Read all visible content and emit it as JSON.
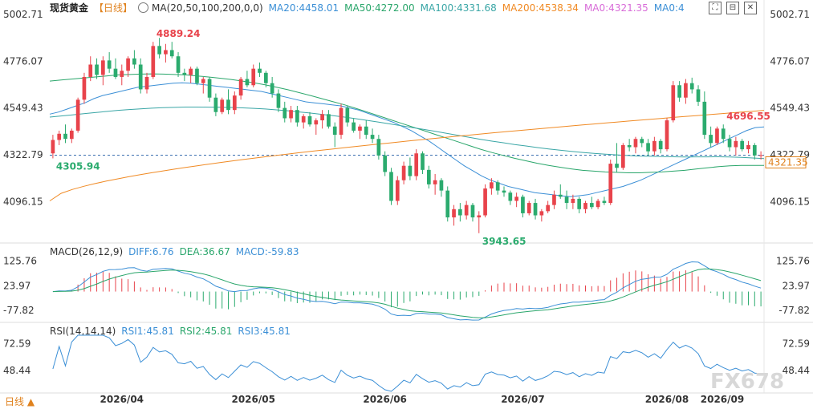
{
  "header": {
    "title": "现货黄金",
    "period": "【日线】",
    "ma_label": "MA(20,50,100,200,0,0)",
    "ma20": "MA20:4458.01",
    "ma50": "MA50:4272.00",
    "ma100": "MA100:4331.68",
    "ma200": "MA200:4538.34",
    "ma0a": "MA0:4321.35",
    "ma0b": "MA0:4"
  },
  "macd_header": {
    "label": "MACD(26,12,9)",
    "diff": "DIFF:6.76",
    "dea": "DEA:36.67",
    "macd": "MACD:-59.83"
  },
  "rsi_header": {
    "label": "RSI(14,14,14)",
    "rsi1": "RSI1:45.81",
    "rsi2": "RSI2:45.81",
    "rsi3": "RSI3:45.81"
  },
  "footer": {
    "period_selector": "日线 ▲"
  },
  "watermark": "FX678",
  "colors": {
    "up": "#e8434b",
    "down": "#2bab6e",
    "ma20": "#3b8fd6",
    "ma50": "#2aa66b",
    "ma100": "#3aa6a6",
    "ma200": "#f08a24",
    "diff": "#3b8fd6",
    "dea": "#2aa66b"
  },
  "chart_data": [
    {
      "type": "candlestick",
      "title": "现货黄金 日线",
      "y_axis_ticks": [
        "5002.71",
        "4776.07",
        "4549.43",
        "4322.79",
        "4096.15"
      ],
      "ylim": [
        3900,
        5002.71
      ],
      "x_tick_labels": [
        "2026/04",
        "2026/05",
        "2026/06",
        "2026/07",
        "2026/08",
        "2026/09"
      ],
      "current_price_label": "4321.35",
      "annotations": [
        {
          "text": "4889.24",
          "type": "high"
        },
        {
          "text": "4305.94",
          "type": "low"
        },
        {
          "text": "3943.65",
          "type": "low"
        },
        {
          "text": "4696.55",
          "type": "high"
        }
      ],
      "ohlc": [
        [
          4330,
          4420,
          4305.94,
          4395
        ],
        [
          4395,
          4440,
          4370,
          4425
        ],
        [
          4425,
          4470,
          4380,
          4400
        ],
        [
          4400,
          4450,
          4380,
          4440
        ],
        [
          4440,
          4600,
          4430,
          4590
        ],
        [
          4590,
          4720,
          4570,
          4700
        ],
        [
          4700,
          4800,
          4680,
          4760
        ],
        [
          4760,
          4790,
          4690,
          4710
        ],
        [
          4710,
          4800,
          4660,
          4780
        ],
        [
          4780,
          4820,
          4720,
          4740
        ],
        [
          4740,
          4790,
          4690,
          4700
        ],
        [
          4700,
          4760,
          4660,
          4730
        ],
        [
          4730,
          4800,
          4700,
          4790
        ],
        [
          4790,
          4830,
          4740,
          4760
        ],
        [
          4760,
          4790,
          4620,
          4640
        ],
        [
          4640,
          4720,
          4620,
          4700
        ],
        [
          4700,
          4870,
          4690,
          4850
        ],
        [
          4850,
          4889.24,
          4790,
          4810
        ],
        [
          4810,
          4860,
          4770,
          4830
        ],
        [
          4830,
          4870,
          4790,
          4800
        ],
        [
          4800,
          4820,
          4700,
          4720
        ],
        [
          4720,
          4740,
          4680,
          4710
        ],
        [
          4710,
          4750,
          4670,
          4740
        ],
        [
          4740,
          4750,
          4660,
          4670
        ],
        [
          4670,
          4700,
          4620,
          4690
        ],
        [
          4690,
          4700,
          4580,
          4600
        ],
        [
          4600,
          4620,
          4510,
          4530
        ],
        [
          4530,
          4600,
          4520,
          4590
        ],
        [
          4590,
          4640,
          4520,
          4540
        ],
        [
          4540,
          4630,
          4520,
          4610
        ],
        [
          4610,
          4700,
          4590,
          4690
        ],
        [
          4690,
          4730,
          4650,
          4660
        ],
        [
          4660,
          4760,
          4650,
          4740
        ],
        [
          4740,
          4770,
          4700,
          4720
        ],
        [
          4720,
          4730,
          4650,
          4670
        ],
        [
          4670,
          4700,
          4600,
          4620
        ],
        [
          4620,
          4640,
          4530,
          4550
        ],
        [
          4550,
          4580,
          4480,
          4500
        ],
        [
          4500,
          4560,
          4480,
          4540
        ],
        [
          4540,
          4560,
          4460,
          4480
        ],
        [
          4480,
          4520,
          4450,
          4510
        ],
        [
          4510,
          4530,
          4460,
          4470
        ],
        [
          4470,
          4500,
          4420,
          4490
        ],
        [
          4490,
          4540,
          4450,
          4520
        ],
        [
          4520,
          4540,
          4450,
          4460
        ],
        [
          4460,
          4480,
          4360,
          4420
        ],
        [
          4420,
          4570,
          4400,
          4550
        ],
        [
          4550,
          4560,
          4460,
          4480
        ],
        [
          4480,
          4500,
          4430,
          4440
        ],
        [
          4440,
          4470,
          4400,
          4460
        ],
        [
          4460,
          4490,
          4400,
          4420
        ],
        [
          4420,
          4450,
          4380,
          4400
        ],
        [
          4400,
          4420,
          4300,
          4320
        ],
        [
          4320,
          4340,
          4220,
          4240
        ],
        [
          4240,
          4260,
          4080,
          4100
        ],
        [
          4100,
          4220,
          4080,
          4200
        ],
        [
          4200,
          4290,
          4180,
          4270
        ],
        [
          4270,
          4310,
          4200,
          4220
        ],
        [
          4220,
          4350,
          4200,
          4330
        ],
        [
          4330,
          4340,
          4230,
          4250
        ],
        [
          4250,
          4270,
          4160,
          4180
        ],
        [
          4180,
          4230,
          4130,
          4200
        ],
        [
          4200,
          4210,
          4120,
          4150
        ],
        [
          4150,
          4170,
          4000,
          4020
        ],
        [
          4020,
          4080,
          3980,
          4060
        ],
        [
          4060,
          4090,
          4000,
          4030
        ],
        [
          4030,
          4100,
          4010,
          4080
        ],
        [
          4080,
          4090,
          4000,
          4020
        ],
        [
          4020,
          4050,
          3943.65,
          4030
        ],
        [
          4030,
          4180,
          4020,
          4160
        ],
        [
          4160,
          4210,
          4130,
          4190
        ],
        [
          4190,
          4200,
          4130,
          4150
        ],
        [
          4150,
          4170,
          4120,
          4140
        ],
        [
          4140,
          4150,
          4080,
          4100
        ],
        [
          4100,
          4140,
          4070,
          4120
        ],
        [
          4120,
          4130,
          4020,
          4040
        ],
        [
          4040,
          4100,
          4030,
          4090
        ],
        [
          4090,
          4110,
          4010,
          4030
        ],
        [
          4030,
          4060,
          4000,
          4050
        ],
        [
          4050,
          4100,
          4040,
          4080
        ],
        [
          4080,
          4150,
          4060,
          4130
        ],
        [
          4130,
          4180,
          4110,
          4120
        ],
        [
          4120,
          4150,
          4060,
          4090
        ],
        [
          4090,
          4130,
          4060,
          4110
        ],
        [
          4110,
          4120,
          4040,
          4060
        ],
        [
          4060,
          4100,
          4040,
          4090
        ],
        [
          4090,
          4120,
          4060,
          4070
        ],
        [
          4070,
          4110,
          4060,
          4100
        ],
        [
          4100,
          4120,
          4080,
          4090
        ],
        [
          4090,
          4300,
          4080,
          4280
        ],
        [
          4280,
          4380,
          4240,
          4260
        ],
        [
          4260,
          4380,
          4250,
          4370
        ],
        [
          4370,
          4400,
          4340,
          4360
        ],
        [
          4360,
          4410,
          4330,
          4400
        ],
        [
          4400,
          4410,
          4360,
          4380
        ],
        [
          4380,
          4400,
          4320,
          4340
        ],
        [
          4340,
          4410,
          4320,
          4390
        ],
        [
          4390,
          4400,
          4330,
          4350
        ],
        [
          4350,
          4500,
          4340,
          4490
        ],
        [
          4490,
          4680,
          4480,
          4660
        ],
        [
          4660,
          4680,
          4580,
          4600
        ],
        [
          4600,
          4690,
          4570,
          4670
        ],
        [
          4670,
          4696.55,
          4620,
          4640
        ],
        [
          4640,
          4660,
          4560,
          4580
        ],
        [
          4580,
          4630,
          4400,
          4420
        ],
        [
          4420,
          4460,
          4360,
          4380
        ],
        [
          4380,
          4460,
          4370,
          4450
        ],
        [
          4450,
          4470,
          4380,
          4400
        ],
        [
          4400,
          4420,
          4340,
          4360
        ],
        [
          4360,
          4410,
          4320,
          4390
        ],
        [
          4390,
          4400,
          4340,
          4350
        ],
        [
          4350,
          4390,
          4330,
          4370
        ],
        [
          4370,
          4380,
          4300,
          4320
        ],
        [
          4320,
          4340,
          4300,
          4321.35
        ]
      ],
      "ma20": [
        4520,
        4530,
        4545,
        4560,
        4575,
        4595,
        4610,
        4620,
        4630,
        4640,
        4650,
        4655,
        4660,
        4665,
        4670,
        4672,
        4670,
        4665,
        4660,
        4655,
        4650,
        4645,
        4640,
        4635,
        4630,
        4620,
        4610,
        4600,
        4590,
        4580,
        4575,
        4570,
        4565,
        4560,
        4550,
        4540,
        4525,
        4510,
        4495,
        4480,
        4460,
        4440,
        4415,
        4390,
        4360,
        4330,
        4300,
        4270,
        4245,
        4220,
        4200,
        4185,
        4170,
        4160,
        4150,
        4140,
        4135,
        4130,
        4125,
        4120,
        4125,
        4130,
        4140,
        4150,
        4160,
        4170,
        4185,
        4200,
        4220,
        4240,
        4260,
        4280,
        4300,
        4320,
        4340,
        4360,
        4380,
        4400,
        4420,
        4440,
        4455,
        4458.01
      ],
      "ma50": [
        4680,
        4685,
        4690,
        4695,
        4700,
        4705,
        4710,
        4712,
        4714,
        4715,
        4714,
        4712,
        4710,
        4705,
        4700,
        4694,
        4688,
        4680,
        4672,
        4662,
        4650,
        4638,
        4624,
        4610,
        4595,
        4580,
        4565,
        4548,
        4530,
        4512,
        4494,
        4476,
        4458,
        4440,
        4422,
        4404,
        4386,
        4368,
        4350,
        4334,
        4320,
        4306,
        4294,
        4282,
        4272,
        4263,
        4255,
        4248,
        4244,
        4240,
        4238,
        4236,
        4236,
        4238,
        4240,
        4244,
        4248,
        4254,
        4260,
        4266,
        4270,
        4272,
        4272,
        4272.0
      ]
    },
    {
      "type": "bar",
      "title": "MACD(26,12,9)",
      "y_axis_ticks": [
        "125.76",
        "23.97",
        "-77.82"
      ],
      "ylim": [
        -120,
        150
      ],
      "series": [
        {
          "name": "DIFF",
          "values_label": "6.76"
        },
        {
          "name": "DEA",
          "values_label": "36.67"
        },
        {
          "name": "MACD",
          "values_label": "-59.83"
        }
      ]
    },
    {
      "type": "line",
      "title": "RSI(14,14,14)",
      "y_axis_ticks": [
        "72.59",
        "48.44"
      ],
      "ylim": [
        30,
        80
      ],
      "series": [
        {
          "name": "RSI1",
          "last": 45.81
        },
        {
          "name": "RSI2",
          "last": 45.81
        },
        {
          "name": "RSI3",
          "last": 45.81
        }
      ]
    }
  ]
}
